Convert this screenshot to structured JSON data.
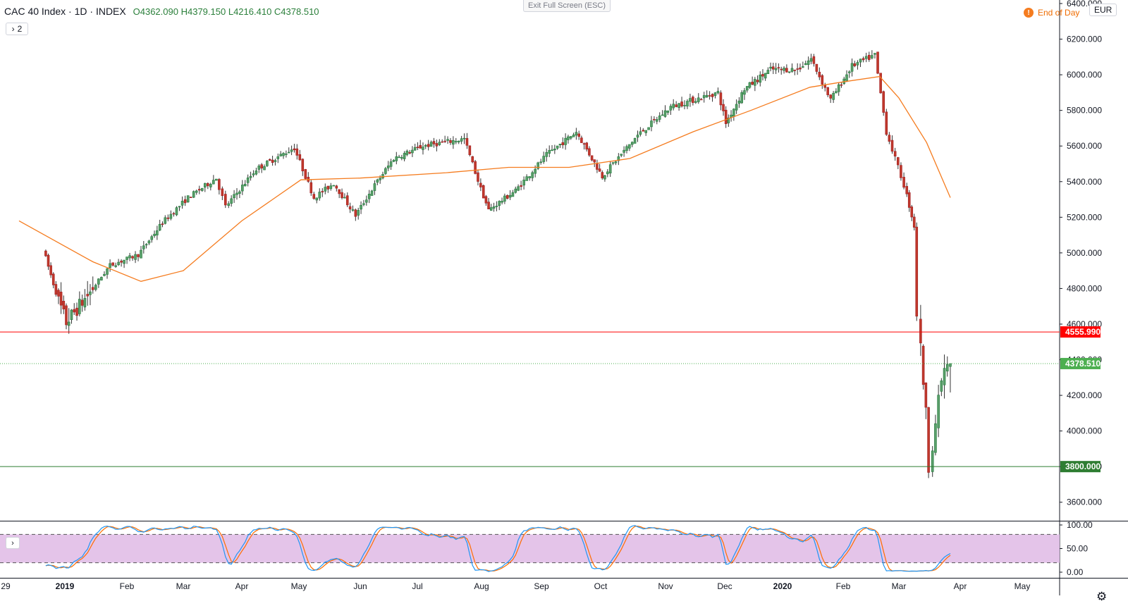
{
  "header": {
    "title": "CAC 40 Index · 1D · INDEX",
    "open": "O4362.090",
    "high": "H4379.150",
    "low": "L4216.410",
    "close": "C4378.510",
    "collapse_count": "2",
    "exit_fullscreen": "Exit Full Screen (ESC)",
    "end_of_day": "End of Day",
    "currency": "EUR"
  },
  "icons": {
    "collapse": "chevron-right-icon",
    "eod": "exclamation-icon",
    "indicator_toggle": "chevron-right-icon",
    "settings": "gear-icon"
  },
  "colors": {
    "up": "#26a69a",
    "down": "#ef5350",
    "ma": "#f57c1f",
    "resistance": "#ff0000",
    "support": "#2e7d32",
    "last_price": "#4caf50",
    "stoch_k": "#2196f3",
    "stoch_d": "#ff6d00",
    "stoch_band": "#e1bee7"
  },
  "chart_data": {
    "type": "candlestick",
    "ylim": [
      3500,
      6400
    ],
    "price_ticks": [
      "3600.000",
      "3800.000",
      "4000.000",
      "4200.000",
      "4400.000",
      "4600.000",
      "4800.000",
      "5000.000",
      "5200.000",
      "5400.000",
      "5600.000",
      "5800.000",
      "6000.000",
      "6200.000",
      "6400.000"
    ],
    "x_labels": [
      "29",
      "2019",
      "Feb",
      "Mar",
      "Apr",
      "May",
      "Jun",
      "Jul",
      "Aug",
      "Sep",
      "Oct",
      "Nov",
      "Dec",
      "2020",
      "Feb",
      "Mar",
      "Apr",
      "May"
    ],
    "horizontal_lines": [
      {
        "value": 4555.99,
        "label": "4555.990",
        "style": "solid",
        "color": "#ff0000"
      },
      {
        "value": 3800.0,
        "label": "3800.000",
        "style": "solid",
        "color": "#2e7d32"
      },
      {
        "value": 4378.51,
        "label": "4378.510",
        "style": "dotted",
        "color": "#4caf50"
      }
    ],
    "anchors": [
      [
        "Dec 27",
        5020
      ],
      [
        "Dec 31",
        4730
      ],
      [
        "Jan 3",
        4610
      ],
      [
        "Jan 15",
        4780
      ],
      [
        "Jan 25",
        4930
      ],
      [
        "Feb 8",
        4990
      ],
      [
        "Feb 20",
        5170
      ],
      [
        "Mar 5",
        5310
      ],
      [
        "Mar 20",
        5420
      ],
      [
        "Mar 25",
        5260
      ],
      [
        "Apr 10",
        5470
      ],
      [
        "Apr 30",
        5590
      ],
      [
        "May 10",
        5310
      ],
      [
        "May 20",
        5390
      ],
      [
        "May 31",
        5210
      ],
      [
        "Jun 10",
        5380
      ],
      [
        "Jun 20",
        5530
      ],
      [
        "Jul 5",
        5600
      ],
      [
        "Jul 25",
        5640
      ],
      [
        "Aug 2",
        5360
      ],
      [
        "Aug 6",
        5240
      ],
      [
        "Aug 20",
        5350
      ],
      [
        "Sep 5",
        5550
      ],
      [
        "Sep 20",
        5680
      ],
      [
        "Oct 3",
        5430
      ],
      [
        "Oct 20",
        5660
      ],
      [
        "Nov 5",
        5820
      ],
      [
        "Nov 29",
        5900
      ],
      [
        "Dec 3",
        5730
      ],
      [
        "Dec 13",
        5920
      ],
      [
        "Dec 27",
        6030
      ],
      [
        "Jan 10",
        6030
      ],
      [
        "Jan 17",
        6090
      ],
      [
        "Jan 27",
        5860
      ],
      [
        "Feb 7",
        6050
      ],
      [
        "Feb 19",
        6110
      ],
      [
        "Feb 25",
        5680
      ],
      [
        "Mar 5",
        5380
      ],
      [
        "Mar 10",
        5150
      ],
      [
        "Mar 12",
        4650
      ],
      [
        "Mar 16",
        4100
      ],
      [
        "Mar 18",
        3800
      ],
      [
        "Mar 24",
        4290
      ],
      [
        "Mar 27",
        4378
      ]
    ],
    "ma_line": [
      [
        "Dec 20",
        5180
      ],
      [
        "Jan 15",
        4950
      ],
      [
        "Feb 8",
        4840
      ],
      [
        "Mar 1",
        4900
      ],
      [
        "Apr 1",
        5180
      ],
      [
        "May 2",
        5410
      ],
      [
        "Jun 1",
        5420
      ],
      [
        "Jul 15",
        5450
      ],
      [
        "Aug 15",
        5480
      ],
      [
        "Sep 15",
        5480
      ],
      [
        "Oct 15",
        5530
      ],
      [
        "Nov 15",
        5680
      ],
      [
        "Dec 15",
        5800
      ],
      [
        "Jan 15",
        5930
      ],
      [
        "Feb 1",
        5960
      ],
      [
        "Feb 20",
        5990
      ],
      [
        "Mar 1",
        5870
      ],
      [
        "Mar 15",
        5620
      ],
      [
        "Mar 27",
        5310
      ]
    ],
    "stochastic": {
      "ticks": [
        "100.00",
        "50.00",
        "0.00"
      ],
      "upper": 80,
      "lower": 20
    }
  }
}
